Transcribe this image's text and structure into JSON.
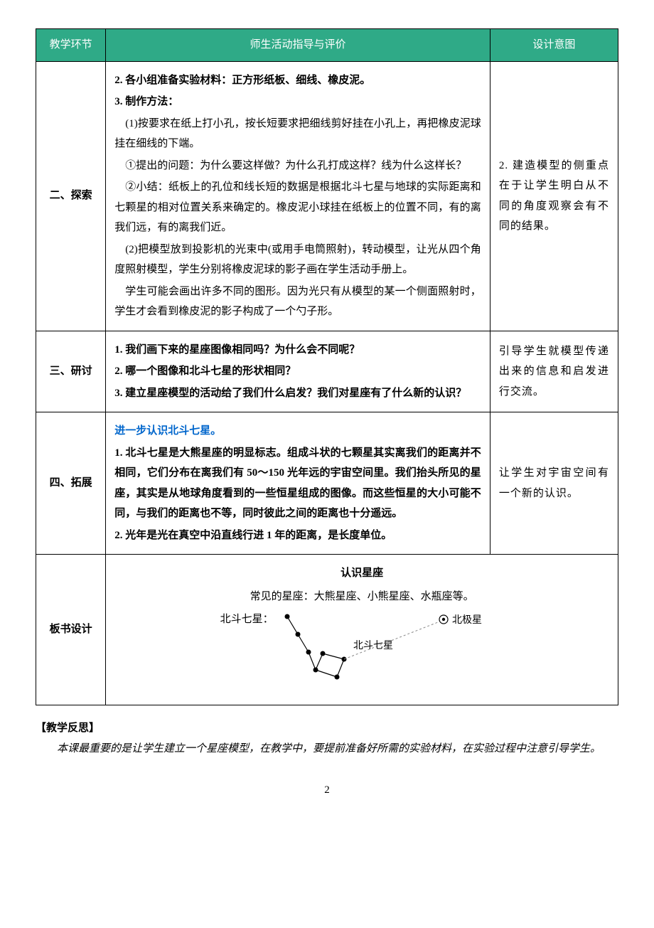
{
  "table": {
    "headers": [
      "教学环节",
      "师生活动指导与评价",
      "设计意图"
    ],
    "rows": [
      {
        "seg": "二、探索",
        "act": [
          {
            "cls": "p-noindent bold",
            "t": "2. 各小组准备实验材料：正方形纸板、细线、橡皮泥。"
          },
          {
            "cls": "p-noindent bold",
            "t": "3. 制作方法："
          },
          {
            "cls": "p-indent1",
            "t": "(1)按要求在纸上打小孔，按长短要求把细线剪好挂在小孔上，再把橡皮泥球挂在细线的下端。"
          },
          {
            "cls": "p-indent1",
            "t": "①提出的问题：为什么要这样做？为什么孔打成这样？线为什么这样长？"
          },
          {
            "cls": "p-indent1",
            "t": "②小结：纸板上的孔位和线长短的数据是根据北斗七星与地球的实际距离和七颗星的相对位置关系来确定的。橡皮泥小球挂在纸板上的位置不同，有的离我们远，有的离我们近。"
          },
          {
            "cls": "p-indent1",
            "t": "(2)把模型放到投影机的光束中(或用手电筒照射)，转动模型，让光从四个角度照射模型，学生分别将橡皮泥球的影子画在学生活动手册上。"
          },
          {
            "cls": "p-indent1",
            "t": "学生可能会画出许多不同的图形。因为光只有从模型的某一个侧面照射时，学生才会看到橡皮泥的影子构成了一个勺子形。"
          }
        ],
        "int": "2. 建造模型的侧重点在于让学生明白从不同的角度观察会有不同的结果。"
      },
      {
        "seg": "三、研讨",
        "act": [
          {
            "cls": "p-noindent bold",
            "t": "1. 我们画下来的星座图像相同吗？为什么会不同呢？"
          },
          {
            "cls": "p-noindent bold",
            "t": "2. 哪一个图像和北斗七星的形状相同？"
          },
          {
            "cls": "p-noindent bold",
            "t": "3. 建立星座模型的活动给了我们什么启发？我们对星座有了什么新的认识？"
          }
        ],
        "int": "引导学生就模型传递出来的信息和启发进行交流。"
      },
      {
        "seg": "四、拓展",
        "act": [
          {
            "cls": "p-noindent blue",
            "t": "进一步认识北斗七星。"
          },
          {
            "cls": "p-noindent bold",
            "t": "1. 北斗七星是大熊星座的明显标志。组成斗状的七颗星其实离我们的距离并不相同，它们分布在离我们有 50～150 光年远的宇宙空间里。我们抬头所见的星座，其实是从地球角度看到的一些恒星组成的图像。而这些恒星的大小可能不同，与我们的距离也不等，同时彼此之间的距离也十分遥远。"
          },
          {
            "cls": "p-noindent bold",
            "t": "2. 光年是光在真空中沿直线行进 1 年的距离，是长度单位。"
          }
        ],
        "int": "让学生对宇宙空间有一个新的认识。"
      }
    ],
    "board": {
      "seg": "板书设计",
      "title": "认识星座",
      "line1": "常见的星座：大熊星座、小熊星座、水瓶座等。",
      "dipper_label_left": "北斗七星：",
      "dipper_label_inner": "北斗七星",
      "polaris_label": "北极星"
    }
  },
  "footnote": {
    "head": "【教学反思】",
    "body": "本课最重要的是让学生建立一个星座模型，在教学中，要提前准备好所需的实验材料，在实验过程中注意引导学生。"
  },
  "page": "2",
  "svg": {
    "star_fill": "#000000",
    "line_stroke": "#888888",
    "dash": "3,3",
    "polaris_outer": "#000000",
    "polaris_inner": "#000000"
  }
}
